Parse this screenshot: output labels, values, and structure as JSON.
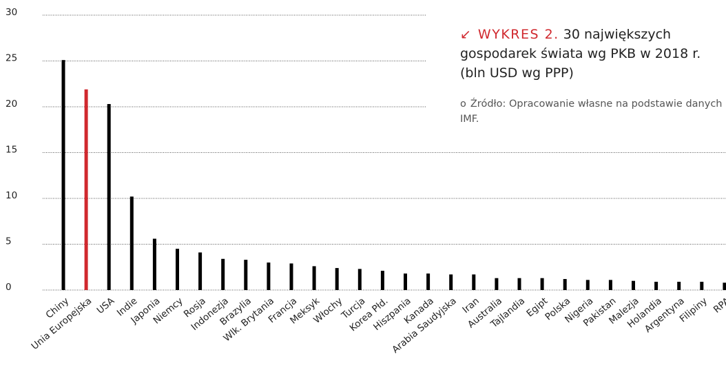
{
  "chart_data": {
    "type": "bar",
    "title_label": "WYKRES 2.",
    "title": "30 największych gospodarek świata wg PKB w 2018 r. (bln USD wg PPP)",
    "source": "Źródło: Opracowanie własne na podstawie danych IMF.",
    "categories": [
      "Chiny",
      "Unia Europejska",
      "USA",
      "Indie",
      "Japonia",
      "Niemcy",
      "Rosja",
      "Indonezja",
      "Brazylia",
      "Wlk. Brytania",
      "Francja",
      "Meksyk",
      "Włochy",
      "Turcja",
      "Korea Płd.",
      "Hiszpania",
      "Kanada",
      "Arabia Saudyjska",
      "Iran",
      "Australia",
      "Tajlandia",
      "Egipt",
      "Polska",
      "Nigeria",
      "Pakistan",
      "Malezja",
      "Holandia",
      "Argentyna",
      "Filipiny",
      "RPA"
    ],
    "values": [
      25.1,
      21.9,
      20.3,
      10.2,
      5.6,
      4.5,
      4.1,
      3.4,
      3.3,
      3.0,
      2.9,
      2.6,
      2.4,
      2.3,
      2.1,
      1.8,
      1.8,
      1.7,
      1.7,
      1.3,
      1.3,
      1.3,
      1.2,
      1.1,
      1.1,
      1.0,
      0.9,
      0.9,
      0.9,
      0.8
    ],
    "colors": [
      "#000000",
      "#d0282e",
      "#000000",
      "#000000",
      "#000000",
      "#000000",
      "#000000",
      "#000000",
      "#000000",
      "#000000",
      "#000000",
      "#000000",
      "#000000",
      "#000000",
      "#000000",
      "#000000",
      "#000000",
      "#000000",
      "#000000",
      "#000000",
      "#000000",
      "#000000",
      "#000000",
      "#000000",
      "#000000",
      "#000000",
      "#000000",
      "#000000",
      "#000000",
      "#000000"
    ],
    "ylim": [
      0,
      30
    ],
    "yticks": [
      0,
      5,
      10,
      15,
      20,
      25,
      30
    ],
    "grid": true
  }
}
